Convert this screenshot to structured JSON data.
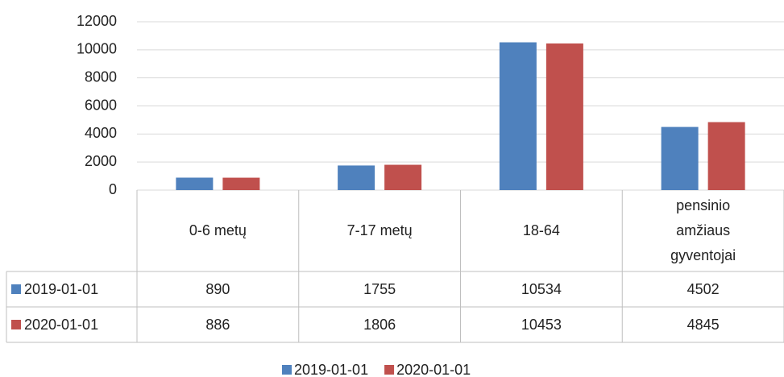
{
  "chart_data": {
    "type": "bar",
    "categories": [
      "0-6  metų",
      "7-17 metų",
      "18-64",
      "pensinio amžiaus gyventojai"
    ],
    "series": [
      {
        "name": "2019-01-01",
        "color": "#4f81bd",
        "values": [
          890,
          1755,
          10534,
          4502
        ]
      },
      {
        "name": "2020-01-01",
        "color": "#c0504d",
        "values": [
          886,
          1806,
          10453,
          4845
        ]
      }
    ],
    "ylim": [
      0,
      12000
    ],
    "yticks": [
      0,
      2000,
      4000,
      6000,
      8000,
      10000,
      12000
    ],
    "grid": true,
    "legend": "bottom",
    "data_table": true
  }
}
